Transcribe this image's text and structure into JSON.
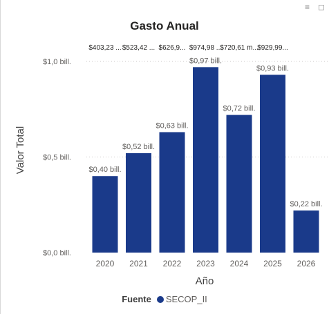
{
  "window": {
    "filter_icon": "filter-lines-icon",
    "expand_icon": "focus-mode-icon"
  },
  "chart_data": {
    "type": "bar",
    "title": "Gasto Anual",
    "xlabel": "Año",
    "ylabel": "Valor Total",
    "categories": [
      "2020",
      "2021",
      "2022",
      "2023",
      "2024",
      "2025",
      "2026"
    ],
    "series": [
      {
        "name": "SECOP_II",
        "color": "#1a3a8a",
        "values": [
          0.4,
          0.52,
          0.63,
          0.97,
          0.72,
          0.93,
          0.22
        ],
        "data_labels": [
          "$0,40 bill.",
          "$0,52 bill.",
          "$0,63 bill.",
          "$0,97 bill.",
          "$0,72 bill.",
          "$0,93 bill.",
          "$0,22 bill."
        ]
      }
    ],
    "top_labels": [
      "$403,23 ...",
      "$523,42 ...",
      "$626,9...",
      "$974,98 ...",
      "$720,61 m...",
      "$929,99..."
    ],
    "y_ticks": [
      {
        "value": 0,
        "label": "$0,0 bill."
      },
      {
        "value": 0.5,
        "label": "$0,5 bill."
      },
      {
        "value": 1.0,
        "label": "$1,0 bill."
      }
    ],
    "ylim": [
      0,
      1.0
    ],
    "grid": true,
    "legend": {
      "title": "Fuente",
      "placement": "bottom",
      "entries": [
        "SECOP_II"
      ]
    }
  }
}
